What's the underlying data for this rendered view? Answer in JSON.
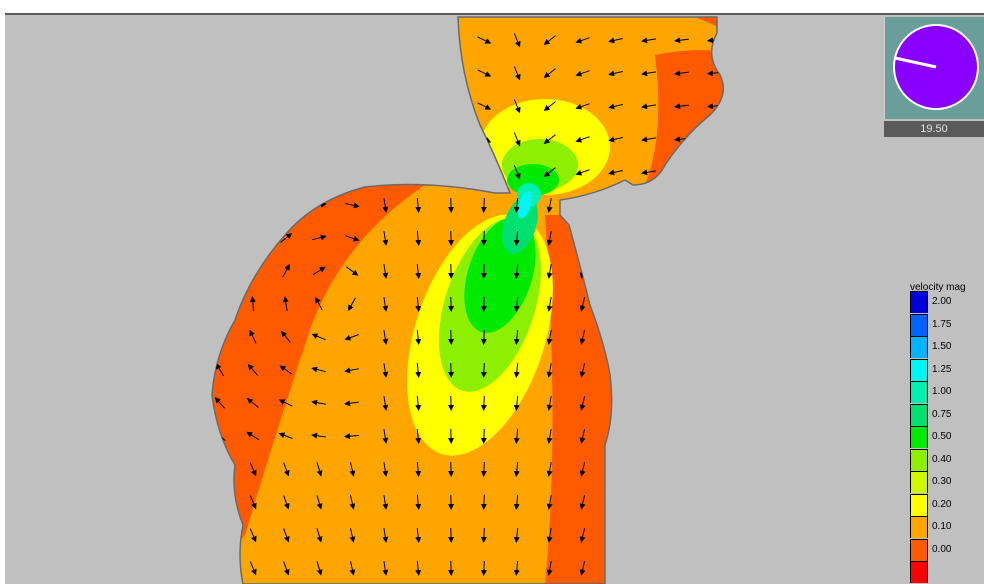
{
  "clock": {
    "value": "19.50",
    "hand_color": "#ffffff",
    "face_color": "#8a00ff"
  },
  "legend": {
    "title": "velocity mag",
    "items": [
      {
        "label": "2.00",
        "color": "#0000dd"
      },
      {
        "label": "1.75",
        "color": "#0062ff"
      },
      {
        "label": "1.50",
        "color": "#00b4ff"
      },
      {
        "label": "1.25",
        "color": "#00f6f6"
      },
      {
        "label": "1.00",
        "color": "#00f0b0"
      },
      {
        "label": "0.75",
        "color": "#00e070"
      },
      {
        "label": "0.50",
        "color": "#00ea00"
      },
      {
        "label": "0.40",
        "color": "#8cf000"
      },
      {
        "label": "0.30",
        "color": "#d0f800"
      },
      {
        "label": "0.20",
        "color": "#ffff00"
      },
      {
        "label": "0.10",
        "color": "#ffa500"
      },
      {
        "label": "0.00",
        "color": "#ff5a00"
      },
      {
        "label": "",
        "color": "#ff0000"
      }
    ]
  },
  "background_color": "#c0c0c0"
}
